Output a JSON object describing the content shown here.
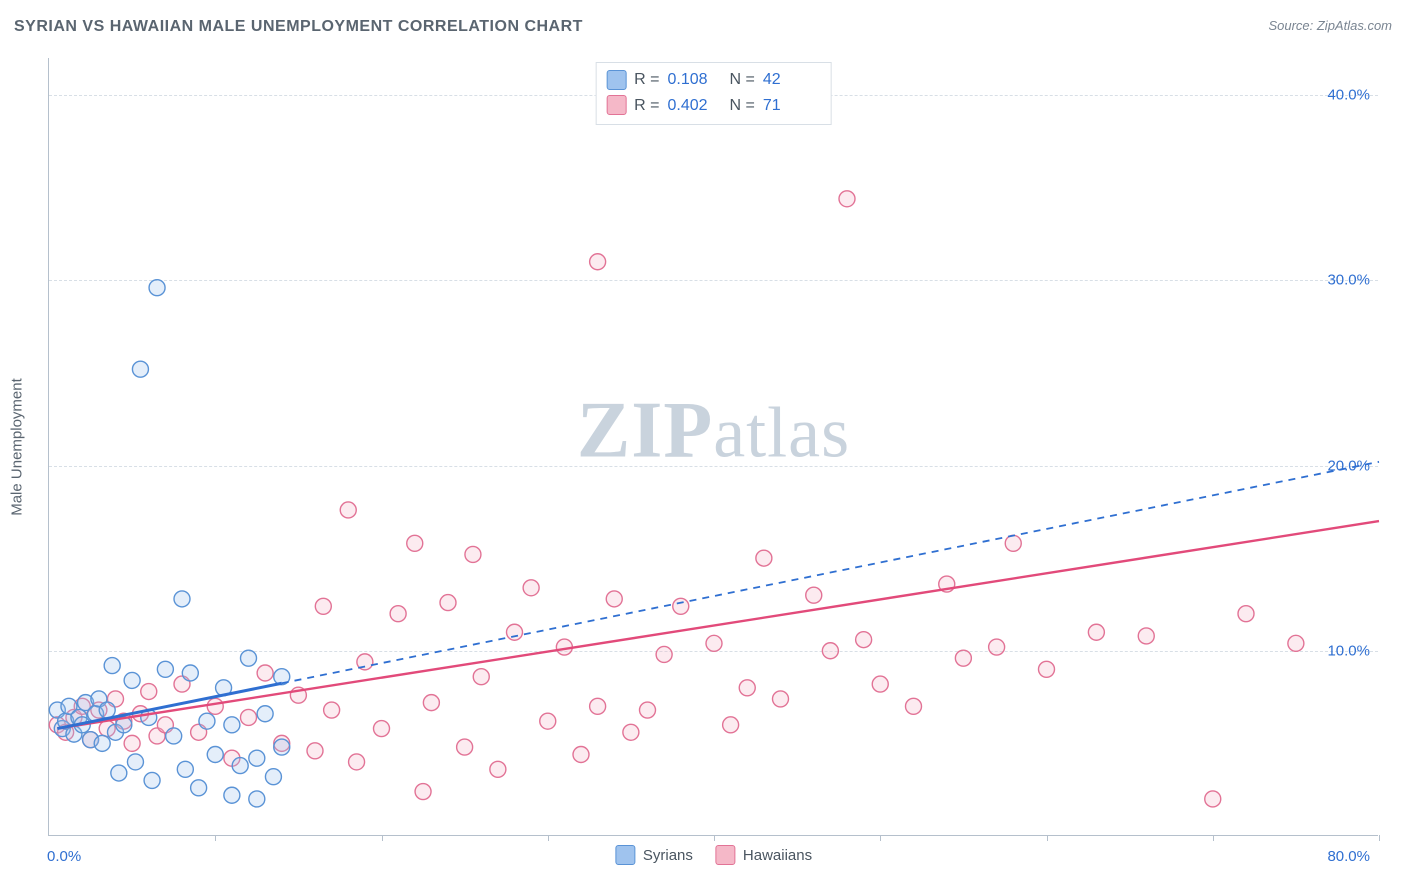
{
  "title": "SYRIAN VS HAWAIIAN MALE UNEMPLOYMENT CORRELATION CHART",
  "source_label": "Source: ZipAtlas.com",
  "watermark": {
    "zip": "ZIP",
    "atlas": "atlas"
  },
  "yaxis_label": "Male Unemployment",
  "chart": {
    "type": "scatter",
    "background_color": "#ffffff",
    "grid_color": "#d8dfe6",
    "axis_color": "#b5c0cc",
    "tick_label_color": "#2f6fd1",
    "axis_label_color": "#5a6570",
    "title_fontsize": 16,
    "tick_fontsize": 15,
    "xlim": [
      0,
      80
    ],
    "ylim": [
      0,
      42
    ],
    "x_tick_step": 10,
    "y_gridlines": [
      10,
      20,
      30,
      40
    ],
    "y_tick_labels": [
      "10.0%",
      "20.0%",
      "30.0%",
      "40.0%"
    ],
    "x_min_label": "0.0%",
    "x_max_label": "80.0%",
    "marker_radius": 8,
    "marker_stroke_width": 1.4,
    "marker_fill_opacity": 0.28,
    "trend_line_width": 2.4,
    "series": [
      {
        "name": "Syrians",
        "color_fill": "#9fc3ee",
        "color_stroke": "#5a93d6",
        "trend_color": "#2f6fd1",
        "trend_dash": "7 6",
        "trend_start": [
          0.5,
          5.8
        ],
        "trend_end": [
          80,
          20.2
        ],
        "trend_solid_until_x": 14,
        "R": "0.108",
        "N": "42",
        "points": [
          [
            0.5,
            6.8
          ],
          [
            0.8,
            5.8
          ],
          [
            1.0,
            6.2
          ],
          [
            1.2,
            7.0
          ],
          [
            1.5,
            5.5
          ],
          [
            1.8,
            6.4
          ],
          [
            2.0,
            6.0
          ],
          [
            2.2,
            7.2
          ],
          [
            2.5,
            5.2
          ],
          [
            2.8,
            6.6
          ],
          [
            3.0,
            7.4
          ],
          [
            3.2,
            5.0
          ],
          [
            3.5,
            6.8
          ],
          [
            3.8,
            9.2
          ],
          [
            4.0,
            5.6
          ],
          [
            4.2,
            3.4
          ],
          [
            4.5,
            6.0
          ],
          [
            5.0,
            8.4
          ],
          [
            5.2,
            4.0
          ],
          [
            5.5,
            25.2
          ],
          [
            6.0,
            6.4
          ],
          [
            6.2,
            3.0
          ],
          [
            6.5,
            29.6
          ],
          [
            7.0,
            9.0
          ],
          [
            7.5,
            5.4
          ],
          [
            8.0,
            12.8
          ],
          [
            8.2,
            3.6
          ],
          [
            8.5,
            8.8
          ],
          [
            9.0,
            2.6
          ],
          [
            9.5,
            6.2
          ],
          [
            10.0,
            4.4
          ],
          [
            10.5,
            8.0
          ],
          [
            11.0,
            2.2
          ],
          [
            11.0,
            6.0
          ],
          [
            11.5,
            3.8
          ],
          [
            12.0,
            9.6
          ],
          [
            12.5,
            4.2
          ],
          [
            12.5,
            2.0
          ],
          [
            13.0,
            6.6
          ],
          [
            13.5,
            3.2
          ],
          [
            14.0,
            8.6
          ],
          [
            14.0,
            4.8
          ]
        ]
      },
      {
        "name": "Hawaiians",
        "color_fill": "#f5b8c8",
        "color_stroke": "#e27396",
        "trend_color": "#e24a7a",
        "trend_dash": "none",
        "trend_start": [
          0.5,
          5.8
        ],
        "trend_end": [
          80,
          17.0
        ],
        "trend_solid_until_x": 80,
        "R": "0.402",
        "N": "71",
        "points": [
          [
            0.5,
            6.0
          ],
          [
            1.0,
            5.6
          ],
          [
            1.5,
            6.4
          ],
          [
            2.0,
            7.0
          ],
          [
            2.5,
            5.2
          ],
          [
            3.0,
            6.8
          ],
          [
            3.5,
            5.8
          ],
          [
            4.0,
            7.4
          ],
          [
            4.5,
            6.2
          ],
          [
            5.0,
            5.0
          ],
          [
            5.5,
            6.6
          ],
          [
            6.0,
            7.8
          ],
          [
            6.5,
            5.4
          ],
          [
            7.0,
            6.0
          ],
          [
            8.0,
            8.2
          ],
          [
            9.0,
            5.6
          ],
          [
            10.0,
            7.0
          ],
          [
            11.0,
            4.2
          ],
          [
            12.0,
            6.4
          ],
          [
            13.0,
            8.8
          ],
          [
            14.0,
            5.0
          ],
          [
            15.0,
            7.6
          ],
          [
            16.0,
            4.6
          ],
          [
            16.5,
            12.4
          ],
          [
            17.0,
            6.8
          ],
          [
            18.0,
            17.6
          ],
          [
            18.5,
            4.0
          ],
          [
            19.0,
            9.4
          ],
          [
            20.0,
            5.8
          ],
          [
            21.0,
            12.0
          ],
          [
            22.0,
            15.8
          ],
          [
            22.5,
            2.4
          ],
          [
            23.0,
            7.2
          ],
          [
            24.0,
            12.6
          ],
          [
            25.0,
            4.8
          ],
          [
            25.5,
            15.2
          ],
          [
            26.0,
            8.6
          ],
          [
            27.0,
            3.6
          ],
          [
            28.0,
            11.0
          ],
          [
            29.0,
            13.4
          ],
          [
            30.0,
            6.2
          ],
          [
            31.0,
            10.2
          ],
          [
            32.0,
            4.4
          ],
          [
            33.0,
            7.0
          ],
          [
            33.0,
            31.0
          ],
          [
            34.0,
            12.8
          ],
          [
            35.0,
            5.6
          ],
          [
            36.0,
            6.8
          ],
          [
            37.0,
            9.8
          ],
          [
            38.0,
            12.4
          ],
          [
            40.0,
            10.4
          ],
          [
            41.0,
            6.0
          ],
          [
            42.0,
            8.0
          ],
          [
            43.0,
            15.0
          ],
          [
            44.0,
            7.4
          ],
          [
            46.0,
            13.0
          ],
          [
            47.0,
            10.0
          ],
          [
            48.0,
            34.4
          ],
          [
            49.0,
            10.6
          ],
          [
            50.0,
            8.2
          ],
          [
            52.0,
            7.0
          ],
          [
            54.0,
            13.6
          ],
          [
            55.0,
            9.6
          ],
          [
            57.0,
            10.2
          ],
          [
            58.0,
            15.8
          ],
          [
            60.0,
            9.0
          ],
          [
            63.0,
            11.0
          ],
          [
            66.0,
            10.8
          ],
          [
            70.0,
            2.0
          ],
          [
            72.0,
            12.0
          ],
          [
            75.0,
            10.4
          ]
        ]
      }
    ],
    "legend_stats_labels": {
      "R": "R =",
      "N": "N ="
    },
    "legend_bottom": [
      "Syrians",
      "Hawaiians"
    ]
  }
}
